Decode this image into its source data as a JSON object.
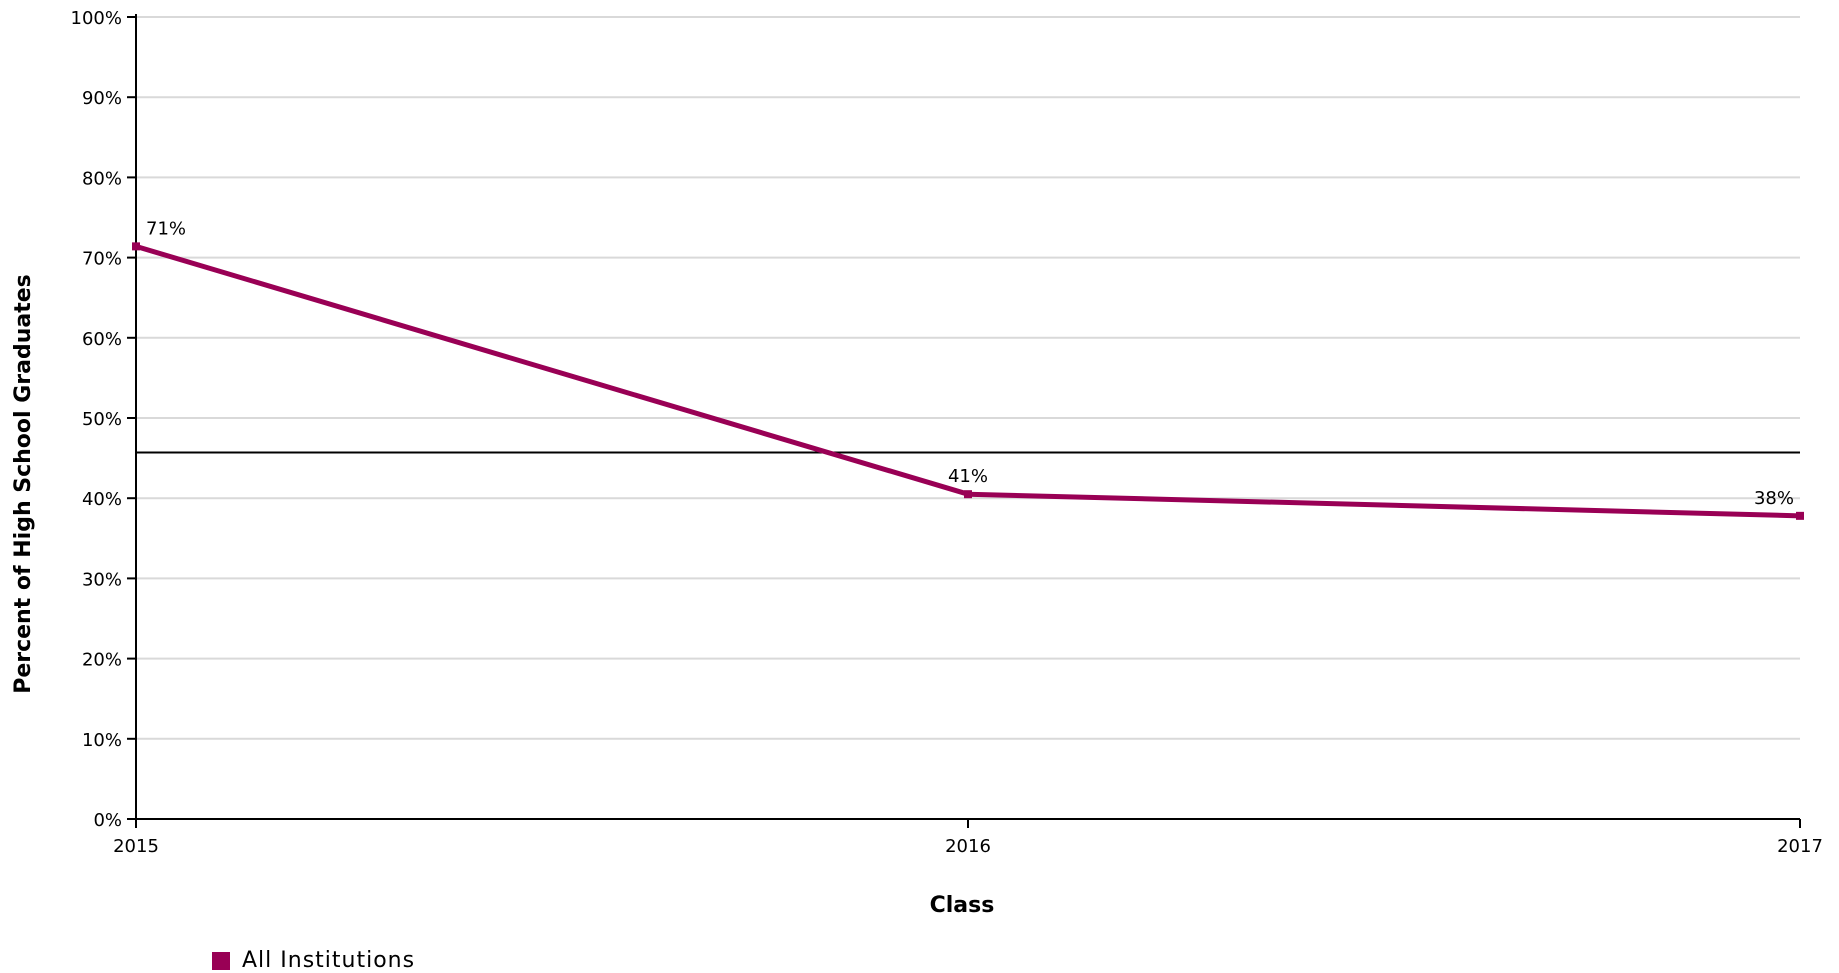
{
  "chart_data": {
    "type": "line",
    "xlabel": "Class",
    "ylabel": "Percent of High School Graduates",
    "categories": [
      "2015",
      "2016",
      "2017"
    ],
    "ylim": [
      0,
      100
    ],
    "yticks": [
      0,
      10,
      20,
      30,
      40,
      50,
      60,
      70,
      80,
      90,
      100
    ],
    "ytick_labels": [
      "0%",
      "10%",
      "20%",
      "30%",
      "40%",
      "50%",
      "60%",
      "70%",
      "80%",
      "90%",
      "100%"
    ],
    "series": [
      {
        "name": "All Institutions",
        "color": "#990055",
        "values": [
          71.4,
          40.5,
          37.8
        ],
        "data_labels": [
          "71%",
          "41%",
          "38%"
        ]
      }
    ],
    "reference_line": {
      "value": 45.7
    },
    "grid": true,
    "legend_position": "bottom-left"
  }
}
